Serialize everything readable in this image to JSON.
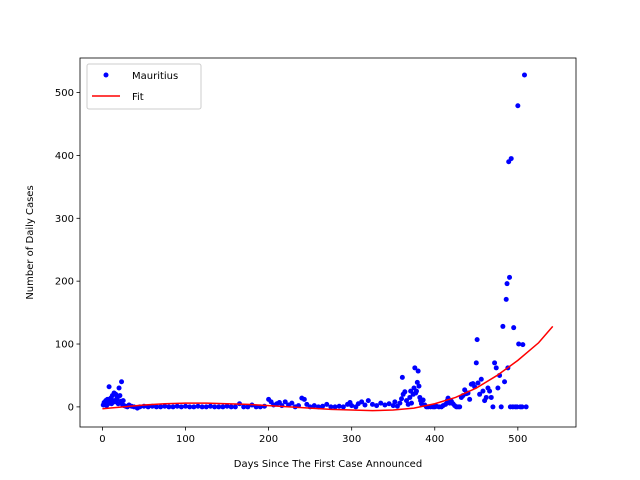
{
  "chart_data": {
    "type": "scatter",
    "xlabel": "Days Since The First Case Announced",
    "ylabel": "Number of Daily Cases",
    "xlim": [
      -27,
      570
    ],
    "ylim": [
      -32,
      555
    ],
    "xticks": [
      "0",
      "100",
      "200",
      "300",
      "400",
      "500"
    ],
    "yticks": [
      "0",
      "100",
      "200",
      "300",
      "400",
      "500"
    ],
    "xtick_values": [
      0,
      100,
      200,
      300,
      400,
      500
    ],
    "ytick_values": [
      0,
      100,
      200,
      300,
      400,
      500
    ],
    "grid": false,
    "legend_position": "upper-left",
    "series": [
      {
        "name": "Mauritius",
        "kind": "markers",
        "color": "#0000ff",
        "points": [
          [
            1,
            3
          ],
          [
            2,
            7
          ],
          [
            3,
            5
          ],
          [
            4,
            10
          ],
          [
            5,
            2
          ],
          [
            6,
            12
          ],
          [
            7,
            5
          ],
          [
            8,
            32
          ],
          [
            9,
            8
          ],
          [
            10,
            14
          ],
          [
            11,
            5
          ],
          [
            12,
            18
          ],
          [
            13,
            10
          ],
          [
            14,
            22
          ],
          [
            15,
            8
          ],
          [
            16,
            20
          ],
          [
            17,
            12
          ],
          [
            18,
            15
          ],
          [
            19,
            5
          ],
          [
            20,
            30
          ],
          [
            21,
            18
          ],
          [
            22,
            9
          ],
          [
            23,
            40
          ],
          [
            24,
            4
          ],
          [
            25,
            10
          ],
          [
            26,
            2
          ],
          [
            28,
            1
          ],
          [
            30,
            0
          ],
          [
            32,
            3
          ],
          [
            35,
            1
          ],
          [
            38,
            0
          ],
          [
            42,
            -2
          ],
          [
            45,
            0
          ],
          [
            50,
            1
          ],
          [
            55,
            0
          ],
          [
            60,
            1
          ],
          [
            65,
            0
          ],
          [
            70,
            0
          ],
          [
            75,
            1
          ],
          [
            80,
            0
          ],
          [
            85,
            0
          ],
          [
            90,
            1
          ],
          [
            95,
            0
          ],
          [
            100,
            1
          ],
          [
            105,
            0
          ],
          [
            110,
            0
          ],
          [
            115,
            1
          ],
          [
            120,
            0
          ],
          [
            125,
            0
          ],
          [
            130,
            1
          ],
          [
            135,
            0
          ],
          [
            140,
            0
          ],
          [
            145,
            0
          ],
          [
            150,
            1
          ],
          [
            155,
            0
          ],
          [
            160,
            0
          ],
          [
            165,
            5
          ],
          [
            170,
            0
          ],
          [
            175,
            0
          ],
          [
            180,
            3
          ],
          [
            185,
            0
          ],
          [
            190,
            0
          ],
          [
            195,
            1
          ],
          [
            200,
            12
          ],
          [
            203,
            8
          ],
          [
            206,
            3
          ],
          [
            210,
            5
          ],
          [
            213,
            7
          ],
          [
            216,
            2
          ],
          [
            220,
            8
          ],
          [
            224,
            3
          ],
          [
            228,
            6
          ],
          [
            232,
            0
          ],
          [
            236,
            2
          ],
          [
            240,
            14
          ],
          [
            243,
            12
          ],
          [
            246,
            4
          ],
          [
            250,
            0
          ],
          [
            255,
            2
          ],
          [
            260,
            0
          ],
          [
            265,
            1
          ],
          [
            270,
            4
          ],
          [
            275,
            0
          ],
          [
            280,
            0
          ],
          [
            285,
            1
          ],
          [
            290,
            0
          ],
          [
            295,
            4
          ],
          [
            298,
            7
          ],
          [
            300,
            2
          ],
          [
            305,
            0
          ],
          [
            308,
            5
          ],
          [
            312,
            8
          ],
          [
            316,
            3
          ],
          [
            320,
            10
          ],
          [
            325,
            4
          ],
          [
            330,
            2
          ],
          [
            335,
            6
          ],
          [
            340,
            3
          ],
          [
            345,
            5
          ],
          [
            350,
            2
          ],
          [
            352,
            8
          ],
          [
            355,
            1
          ],
          [
            358,
            6
          ],
          [
            360,
            13
          ],
          [
            361,
            47
          ],
          [
            362,
            20
          ],
          [
            364,
            24
          ],
          [
            366,
            10
          ],
          [
            368,
            4
          ],
          [
            370,
            15
          ],
          [
            371,
            25
          ],
          [
            372,
            6
          ],
          [
            374,
            20
          ],
          [
            375,
            30
          ],
          [
            376,
            62
          ],
          [
            377,
            22
          ],
          [
            378,
            25
          ],
          [
            379,
            39
          ],
          [
            380,
            57
          ],
          [
            381,
            33
          ],
          [
            382,
            15
          ],
          [
            383,
            10
          ],
          [
            384,
            5
          ],
          [
            386,
            11
          ],
          [
            388,
            3
          ],
          [
            390,
            0
          ],
          [
            392,
            0
          ],
          [
            395,
            0
          ],
          [
            398,
            0
          ],
          [
            400,
            0
          ],
          [
            402,
            1
          ],
          [
            405,
            0
          ],
          [
            408,
            0
          ],
          [
            410,
            2
          ],
          [
            413,
            4
          ],
          [
            415,
            10
          ],
          [
            416,
            14
          ],
          [
            418,
            6
          ],
          [
            420,
            9
          ],
          [
            422,
            5
          ],
          [
            424,
            2
          ],
          [
            426,
            0
          ],
          [
            428,
            0
          ],
          [
            430,
            0
          ],
          [
            432,
            15
          ],
          [
            434,
            18
          ],
          [
            436,
            27
          ],
          [
            438,
            21
          ],
          [
            440,
            22
          ],
          [
            442,
            12
          ],
          [
            444,
            36
          ],
          [
            446,
            37
          ],
          [
            448,
            32
          ],
          [
            450,
            70
          ],
          [
            451,
            107
          ],
          [
            452,
            38
          ],
          [
            454,
            20
          ],
          [
            456,
            44
          ],
          [
            458,
            25
          ],
          [
            460,
            10
          ],
          [
            462,
            15
          ],
          [
            464,
            30
          ],
          [
            466,
            25
          ],
          [
            468,
            15
          ],
          [
            470,
            0
          ],
          [
            472,
            70
          ],
          [
            474,
            62
          ],
          [
            476,
            30
          ],
          [
            478,
            50
          ],
          [
            480,
            0
          ],
          [
            482,
            128
          ],
          [
            484,
            40
          ],
          [
            486,
            171
          ],
          [
            487,
            196
          ],
          [
            488,
            62
          ],
          [
            489,
            390
          ],
          [
            490,
            206
          ],
          [
            491,
            0
          ],
          [
            492,
            395
          ],
          [
            494,
            0
          ],
          [
            495,
            126
          ],
          [
            497,
            0
          ],
          [
            499,
            0
          ],
          [
            500,
            479
          ],
          [
            501,
            100
          ],
          [
            503,
            0
          ],
          [
            505,
            0
          ],
          [
            506,
            99
          ],
          [
            508,
            528
          ],
          [
            510,
            0
          ]
        ]
      },
      {
        "name": "Fit",
        "kind": "line",
        "color": "#ff0000",
        "points": [
          [
            0,
            -3
          ],
          [
            25,
            0
          ],
          [
            50,
            3
          ],
          [
            75,
            5
          ],
          [
            100,
            6
          ],
          [
            125,
            6
          ],
          [
            150,
            5
          ],
          [
            175,
            4
          ],
          [
            200,
            2
          ],
          [
            225,
            0
          ],
          [
            250,
            -2
          ],
          [
            275,
            -4
          ],
          [
            300,
            -5
          ],
          [
            325,
            -6
          ],
          [
            350,
            -5
          ],
          [
            375,
            -2
          ],
          [
            400,
            5
          ],
          [
            425,
            15
          ],
          [
            450,
            30
          ],
          [
            475,
            50
          ],
          [
            500,
            74
          ],
          [
            525,
            102
          ],
          [
            542,
            128
          ]
        ]
      }
    ]
  }
}
